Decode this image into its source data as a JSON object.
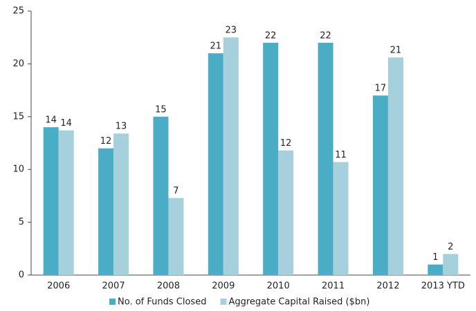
{
  "chart_data": {
    "type": "bar",
    "categories": [
      "2006",
      "2007",
      "2008",
      "2009",
      "2010",
      "2011",
      "2012",
      "2013 YTD"
    ],
    "series": [
      {
        "name": "No. of Funds Closed",
        "color": "#4bacc6",
        "values": [
          14,
          12,
          15,
          21,
          22,
          22,
          17,
          1
        ]
      },
      {
        "name": "Aggregate Capital Raised ($bn)",
        "color": "#a5d0dc",
        "values": [
          13.7,
          13.4,
          7.3,
          22.5,
          11.8,
          10.7,
          20.6,
          2.0
        ],
        "value_labels": [
          "14",
          "13",
          "7",
          "23",
          "12",
          "11",
          "21",
          "2"
        ]
      }
    ],
    "ylim": [
      0,
      25
    ],
    "yticks": [
      0,
      5,
      10,
      15,
      20,
      25
    ],
    "grid": false,
    "legend": "bottom"
  }
}
